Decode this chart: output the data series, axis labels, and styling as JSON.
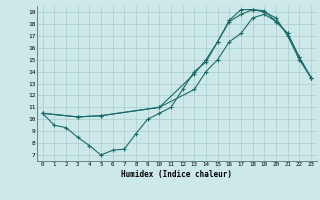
{
  "xlabel": "Humidex (Indice chaleur)",
  "bg_color": "#cce8e8",
  "grid_color": "#aacccc",
  "line_color": "#1a6b6b",
  "xlim": [
    -0.5,
    23.5
  ],
  "ylim": [
    6.5,
    19.5
  ],
  "xticks": [
    0,
    1,
    2,
    3,
    4,
    5,
    6,
    7,
    8,
    9,
    10,
    11,
    12,
    13,
    14,
    15,
    16,
    17,
    18,
    19,
    20,
    21,
    22,
    23
  ],
  "yticks": [
    7,
    8,
    9,
    10,
    11,
    12,
    13,
    14,
    15,
    16,
    17,
    18,
    19
  ],
  "line1_x": [
    0,
    1,
    2,
    3,
    4,
    5,
    6,
    7,
    8,
    9,
    10,
    11,
    12,
    13,
    14,
    15,
    16,
    17,
    18,
    19,
    20,
    21,
    22,
    23
  ],
  "line1_y": [
    10.5,
    9.5,
    9.3,
    8.5,
    7.8,
    7.0,
    7.4,
    7.5,
    8.8,
    10.0,
    10.5,
    11.0,
    12.5,
    14.0,
    14.8,
    16.5,
    18.3,
    19.2,
    19.2,
    19.0,
    18.5,
    17.0,
    15.0,
    13.5
  ],
  "line2_x": [
    0,
    3,
    5,
    10,
    13,
    14,
    15,
    16,
    17,
    18,
    19,
    20,
    21,
    22,
    23
  ],
  "line2_y": [
    10.5,
    10.2,
    10.3,
    11.0,
    13.8,
    15.0,
    16.5,
    18.2,
    18.8,
    19.2,
    19.1,
    18.2,
    17.2,
    15.2,
    13.5
  ],
  "line3_x": [
    0,
    3,
    5,
    10,
    13,
    14,
    15,
    16,
    17,
    18,
    19,
    20,
    21,
    22,
    23
  ],
  "line3_y": [
    10.5,
    10.2,
    10.3,
    11.0,
    12.5,
    14.0,
    15.0,
    16.5,
    17.2,
    18.5,
    18.8,
    18.2,
    17.2,
    15.2,
    13.5
  ]
}
